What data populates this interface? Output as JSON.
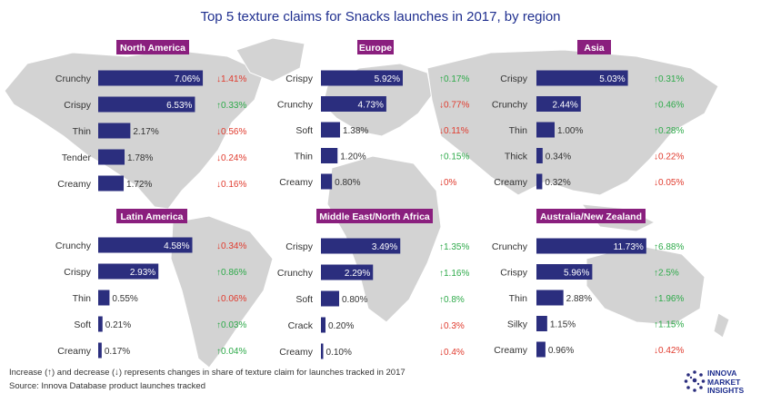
{
  "chart_data": {
    "type": "bar",
    "title": "Top 5 texture claims for Snacks launches in 2017, by region",
    "panels": [
      {
        "region": "North America",
        "items": [
          {
            "label": "Crunchy",
            "value": 7.06,
            "value_text": "7.06%",
            "change_text": "1.41%",
            "direction": "down"
          },
          {
            "label": "Crispy",
            "value": 6.53,
            "value_text": "6.53%",
            "change_text": "0.33%",
            "direction": "up"
          },
          {
            "label": "Thin",
            "value": 2.17,
            "value_text": "2.17%",
            "change_text": "0.56%",
            "direction": "down"
          },
          {
            "label": "Tender",
            "value": 1.78,
            "value_text": "1.78%",
            "change_text": "0.24%",
            "direction": "down"
          },
          {
            "label": "Creamy",
            "value": 1.72,
            "value_text": "1.72%",
            "change_text": "0.16%",
            "direction": "down"
          }
        ]
      },
      {
        "region": "Europe",
        "items": [
          {
            "label": "Crispy",
            "value": 5.92,
            "value_text": "5.92%",
            "change_text": "0.17%",
            "direction": "up"
          },
          {
            "label": "Crunchy",
            "value": 4.73,
            "value_text": "4.73%",
            "change_text": "0.77%",
            "direction": "down"
          },
          {
            "label": "Soft",
            "value": 1.38,
            "value_text": "1.38%",
            "change_text": "0.11%",
            "direction": "down"
          },
          {
            "label": "Thin",
            "value": 1.2,
            "value_text": "1.20%",
            "change_text": "0.15%",
            "direction": "up"
          },
          {
            "label": "Creamy",
            "value": 0.8,
            "value_text": "0.80%",
            "change_text": "0%",
            "direction": "down"
          }
        ]
      },
      {
        "region": "Asia",
        "items": [
          {
            "label": "Crispy",
            "value": 5.03,
            "value_text": "5.03%",
            "change_text": "0.31%",
            "direction": "up"
          },
          {
            "label": "Crunchy",
            "value": 2.44,
            "value_text": "2.44%",
            "change_text": "0.46%",
            "direction": "up"
          },
          {
            "label": "Thin",
            "value": 1.0,
            "value_text": "1.00%",
            "change_text": "0.28%",
            "direction": "up"
          },
          {
            "label": "Thick",
            "value": 0.34,
            "value_text": "0.34%",
            "change_text": "0.22%",
            "direction": "down"
          },
          {
            "label": "Creamy",
            "value": 0.32,
            "value_text": "0.32%",
            "change_text": "0.05%",
            "direction": "down"
          }
        ]
      },
      {
        "region": "Latin America",
        "items": [
          {
            "label": "Crunchy",
            "value": 4.58,
            "value_text": "4.58%",
            "change_text": "0.34%",
            "direction": "down"
          },
          {
            "label": "Crispy",
            "value": 2.93,
            "value_text": "2.93%",
            "change_text": "0.86%",
            "direction": "up"
          },
          {
            "label": "Thin",
            "value": 0.55,
            "value_text": "0.55%",
            "change_text": "0.06%",
            "direction": "down"
          },
          {
            "label": "Soft",
            "value": 0.21,
            "value_text": "0.21%",
            "change_text": "0.03%",
            "direction": "up"
          },
          {
            "label": "Creamy",
            "value": 0.17,
            "value_text": "0.17%",
            "change_text": "0.04%",
            "direction": "up"
          }
        ]
      },
      {
        "region": "Middle East/North Africa",
        "items": [
          {
            "label": "Crispy",
            "value": 3.49,
            "value_text": "3.49%",
            "change_text": "1.35%",
            "direction": "up"
          },
          {
            "label": "Crunchy",
            "value": 2.29,
            "value_text": "2.29%",
            "change_text": "1.16%",
            "direction": "up"
          },
          {
            "label": "Soft",
            "value": 0.8,
            "value_text": "0.80%",
            "change_text": "0.8%",
            "direction": "up"
          },
          {
            "label": "Crack",
            "value": 0.2,
            "value_text": "0.20%",
            "change_text": "0.3%",
            "direction": "down"
          },
          {
            "label": "Creamy",
            "value": 0.1,
            "value_text": "0.10%",
            "change_text": "0.4%",
            "direction": "down"
          }
        ]
      },
      {
        "region": "Australia/New Zealand",
        "items": [
          {
            "label": "Crunchy",
            "value": 11.73,
            "value_text": "11.73%",
            "change_text": "6.88%",
            "direction": "up"
          },
          {
            "label": "Crispy",
            "value": 5.96,
            "value_text": "5.96%",
            "change_text": "2.5%",
            "direction": "up"
          },
          {
            "label": "Thin",
            "value": 2.88,
            "value_text": "2.88%",
            "change_text": "1.96%",
            "direction": "up"
          },
          {
            "label": "Silky",
            "value": 1.15,
            "value_text": "1.15%",
            "change_text": "1.15%",
            "direction": "up"
          },
          {
            "label": "Creamy",
            "value": 0.96,
            "value_text": "0.96%",
            "change_text": "0.42%",
            "direction": "down"
          }
        ]
      }
    ]
  },
  "footnotes": [
    "Increase (↑) and decrease (↓) represents changes in share of texture claim for launches tracked in 2017",
    "Source: Innova Database product launches tracked"
  ],
  "logo": {
    "line1": "INNOVA",
    "line2": "MARKET",
    "line3": "INSIGHTS"
  },
  "colors": {
    "bar": "#2b2e7e",
    "header": "#8a1f7e",
    "up": "#2eaa4a",
    "down": "#e03b2e",
    "map": "#d3d3d3",
    "title": "#1f2f8f"
  }
}
